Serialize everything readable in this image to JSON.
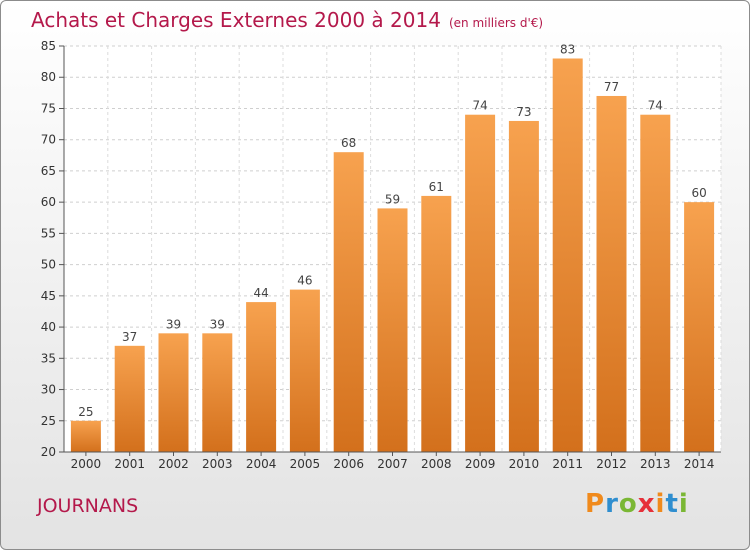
{
  "header": {
    "title": "Achats et Charges Externes 2000 à 2014",
    "subtitle": "(en milliers d'€)"
  },
  "footer": {
    "town": "JOURNANS",
    "logo_letters": [
      "P",
      "r",
      "o",
      "x",
      "i",
      "t",
      "i"
    ],
    "logo_colors": [
      "#f08a1c",
      "#2f8ecf",
      "#7ab734",
      "#e6303a",
      "#f08a1c",
      "#2f8ecf",
      "#7ab734"
    ]
  },
  "chart_data": {
    "type": "bar",
    "title": "Achats et Charges Externes 2000 à 2014",
    "xlabel": "",
    "ylabel": "",
    "categories": [
      "2000",
      "2001",
      "2002",
      "2003",
      "2004",
      "2005",
      "2006",
      "2007",
      "2008",
      "2009",
      "2010",
      "2011",
      "2012",
      "2013",
      "2014"
    ],
    "values": [
      25,
      37,
      39,
      39,
      44,
      46,
      68,
      59,
      61,
      74,
      73,
      83,
      77,
      74,
      60
    ],
    "ylim": [
      20,
      85
    ],
    "yticks": [
      20,
      25,
      30,
      35,
      40,
      45,
      50,
      55,
      60,
      65,
      70,
      75,
      80,
      85
    ],
    "grid": true,
    "bar_color_top": "#f7a24f",
    "bar_color_bottom": "#d3701c"
  }
}
